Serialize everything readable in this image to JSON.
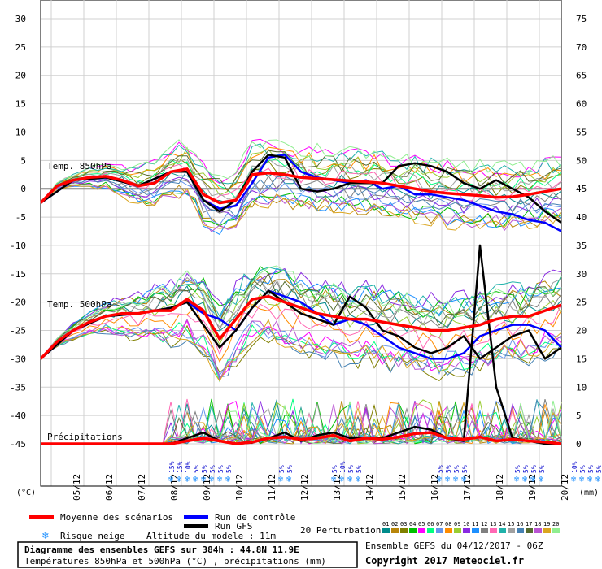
{
  "chart_data": {
    "type": "line",
    "left_axis": {
      "unit_label": "(°C)",
      "ticks": [
        30,
        25,
        20,
        15,
        10,
        5,
        0,
        -5,
        -10,
        -15,
        -20,
        -25,
        -30,
        -35,
        -40,
        -45
      ],
      "range": [
        -45,
        30
      ]
    },
    "right_axis": {
      "unit_label": "(mm)",
      "ticks": [
        75,
        70,
        65,
        60,
        55,
        50,
        45,
        40,
        35,
        30,
        25,
        20,
        15,
        10,
        5,
        0
      ],
      "range": [
        0,
        75
      ]
    },
    "x_ticks": [
      "05/12",
      "06/12",
      "07/12",
      "08/12",
      "09/12",
      "10/12",
      "11/12",
      "12/12",
      "13/12",
      "14/12",
      "15/12",
      "16/12",
      "17/12",
      "18/12",
      "19/12",
      "20/12"
    ],
    "x_range_hours": [
      0,
      384
    ],
    "grid": true,
    "panel_labels": {
      "t850": "Temp. 850hPa",
      "t500": "Temp. 500hPa",
      "precip": "Précipitations"
    },
    "series": [
      {
        "name": "Moyenne des scénarios",
        "color": "#ff0000",
        "panel": "t850",
        "x": [
          0,
          12,
          24,
          36,
          48,
          60,
          72,
          84,
          96,
          108,
          120,
          132,
          144,
          150,
          156,
          168,
          180,
          192,
          204,
          216,
          228,
          240,
          252,
          264,
          276,
          288,
          300,
          312,
          324,
          336,
          348,
          360,
          372,
          384
        ],
        "y": [
          -2.5,
          0.5,
          1.5,
          2,
          2.2,
          1.5,
          0.5,
          1,
          3,
          3.5,
          -1,
          -2.5,
          -2,
          0,
          2.5,
          2.8,
          2.5,
          2,
          1.8,
          1.6,
          1.4,
          1.2,
          1,
          0.5,
          0,
          -0.5,
          -0.8,
          -1,
          -1.2,
          -1.5,
          -1.4,
          -1,
          -0.5,
          0
        ]
      },
      {
        "name": "Moyenne des scénarios",
        "color": "#ff0000",
        "panel": "t500",
        "x": [
          0,
          12,
          24,
          36,
          48,
          60,
          72,
          84,
          96,
          108,
          120,
          132,
          144,
          156,
          168,
          180,
          192,
          204,
          216,
          228,
          240,
          252,
          264,
          276,
          288,
          300,
          312,
          324,
          336,
          348,
          360,
          372,
          384
        ],
        "y": [
          -30,
          -27,
          -25,
          -23.5,
          -22.5,
          -22,
          -22,
          -21.5,
          -21.5,
          -19.5,
          -21.5,
          -26.5,
          -23,
          -19.5,
          -19,
          -20,
          -21,
          -22,
          -22.5,
          -23,
          -23,
          -23.5,
          -24,
          -24.5,
          -25,
          -25,
          -24.5,
          -24,
          -23,
          -22.5,
          -22.5,
          -21.5,
          -20.5
        ]
      },
      {
        "name": "Moyenne des scénarios",
        "color": "#ff0000",
        "panel": "precip",
        "x": [
          0,
          96,
          108,
          120,
          132,
          144,
          156,
          168,
          180,
          192,
          204,
          216,
          228,
          240,
          252,
          264,
          276,
          288,
          300,
          312,
          324,
          336,
          348,
          360,
          372,
          384
        ],
        "y": [
          0,
          0,
          0.5,
          1,
          0.5,
          0,
          0.3,
          1,
          1.2,
          0.8,
          1,
          1.5,
          0.5,
          1,
          0.8,
          1.2,
          1.8,
          2,
          1,
          0.8,
          1.2,
          0.5,
          0.8,
          0.5,
          0.3,
          0
        ]
      },
      {
        "name": "Run de contrôle",
        "color": "#0000ff",
        "panel": "t850",
        "x": [
          0,
          24,
          48,
          72,
          96,
          108,
          120,
          132,
          144,
          156,
          168,
          180,
          192,
          204,
          216,
          228,
          240,
          252,
          264,
          276,
          288,
          300,
          312,
          324,
          336,
          348,
          360,
          372,
          384
        ],
        "y": [
          -2.5,
          1.5,
          2,
          0.5,
          3,
          3,
          -2,
          -3.5,
          -3,
          1,
          5.5,
          6,
          3,
          2,
          1.5,
          1,
          1.5,
          0,
          0.5,
          -1,
          -1,
          -1.5,
          -2,
          -3,
          -4,
          -4.5,
          -5.5,
          -6,
          -7.5
        ]
      },
      {
        "name": "Run de contrôle",
        "color": "#0000ff",
        "panel": "t500",
        "x": [
          0,
          24,
          48,
          72,
          96,
          108,
          120,
          132,
          144,
          156,
          168,
          180,
          192,
          204,
          216,
          228,
          240,
          252,
          264,
          276,
          288,
          300,
          312,
          324,
          336,
          348,
          360,
          372,
          384
        ],
        "y": [
          -30,
          -25,
          -22.5,
          -22,
          -21,
          -20,
          -22,
          -23,
          -25,
          -21,
          -18,
          -19,
          -20,
          -22,
          -24,
          -23,
          -24,
          -26,
          -28,
          -29,
          -30,
          -30,
          -29,
          -26,
          -25,
          -24,
          -24,
          -25,
          -28
        ]
      },
      {
        "name": "Run GFS",
        "color": "#000000",
        "panel": "t850",
        "x": [
          0,
          24,
          48,
          72,
          96,
          108,
          120,
          132,
          144,
          156,
          168,
          180,
          192,
          204,
          216,
          228,
          240,
          252,
          264,
          276,
          288,
          300,
          312,
          324,
          336,
          348,
          360,
          372,
          384
        ],
        "y": [
          -2.5,
          1.5,
          2,
          0.5,
          3,
          3,
          -2,
          -4,
          -2,
          3,
          6,
          5.5,
          0,
          -0.5,
          0,
          1,
          1,
          1,
          4,
          4.5,
          4,
          3,
          1,
          0,
          1.5,
          0,
          -1.5,
          -4,
          -6
        ]
      },
      {
        "name": "Run GFS",
        "color": "#000000",
        "panel": "t500",
        "x": [
          0,
          24,
          48,
          72,
          96,
          108,
          120,
          132,
          144,
          156,
          168,
          180,
          192,
          204,
          216,
          228,
          240,
          252,
          264,
          276,
          288,
          300,
          312,
          324,
          336,
          348,
          360,
          372,
          384
        ],
        "y": [
          -30,
          -25,
          -22.5,
          -22,
          -21,
          -20,
          -24,
          -28,
          -25,
          -21,
          -18,
          -20,
          -22,
          -23,
          -24,
          -19,
          -21,
          -25,
          -26,
          -28,
          -29,
          -28,
          -26,
          -30,
          -28,
          -26,
          -25,
          -30,
          -28
        ]
      },
      {
        "name": "Run GFS",
        "color": "#000000",
        "panel": "precip",
        "x": [
          0,
          96,
          108,
          120,
          132,
          144,
          156,
          168,
          180,
          192,
          204,
          216,
          228,
          240,
          252,
          264,
          276,
          288,
          300,
          312,
          324,
          336,
          348,
          360,
          372,
          384
        ],
        "y": [
          0,
          0,
          1,
          2,
          0.5,
          0,
          0.2,
          1,
          2,
          0.5,
          1.5,
          2,
          1,
          1,
          1,
          2,
          3,
          2.5,
          1,
          0.5,
          35,
          10,
          1,
          0.5,
          0,
          0
        ]
      }
    ],
    "perturbations_label": "20 Perturbations",
    "perturbation_ids": [
      "01",
      "02",
      "03",
      "04",
      "05",
      "06",
      "07",
      "08",
      "09",
      "10",
      "11",
      "12",
      "13",
      "14",
      "15",
      "16",
      "17",
      "18",
      "19",
      "20"
    ],
    "perturbation_colors": [
      "#008b8b",
      "#b8860b",
      "#808000",
      "#00c000",
      "#ff00ff",
      "#00ff7f",
      "#6495ed",
      "#ff8c00",
      "#9acd32",
      "#8a2be2",
      "#1e90ff",
      "#808080",
      "#ff69b4",
      "#20b2aa",
      "#a0a0a0",
      "#4682b4",
      "#556b2f",
      "#ba55d3",
      "#daa520",
      "#90ee90"
    ],
    "snow_markers": [
      {
        "x": 117,
        "labels": [
          "15%",
          "15%",
          "10%",
          "5%",
          "5%",
          "5%",
          "5%",
          "5%"
        ]
      },
      {
        "x": 180,
        "labels": [
          "5%",
          "5%"
        ]
      },
      {
        "x": 225,
        "labels": [
          "5%",
          "10%",
          "5%",
          "5%"
        ]
      },
      {
        "x": 303,
        "labels": [
          "5%",
          "5%",
          "5%",
          "5%"
        ]
      },
      {
        "x": 360,
        "labels": [
          "5%",
          "5%",
          "5%",
          "5%"
        ]
      },
      {
        "x": 402,
        "labels": [
          "10%",
          "5%",
          "5%",
          "5%"
        ]
      }
    ]
  },
  "legend": {
    "mean": "Moyenne des scénarios",
    "control": "Run de contrôle",
    "gfs": "Run GFS",
    "perturbations": "20 Perturbations",
    "snow": "Risque neige",
    "altitude": "Altitude du modele : 11m"
  },
  "footer": {
    "title": "Diagramme des ensembles GEFS sur 384h : 44.8N 11.9E",
    "subtitle": "Températures 850hPa et 500hPa (°C) , précipitations (mm)",
    "run_info": "Ensemble GEFS du 04/12/2017 - 06Z",
    "copyright": "Copyright 2017 Meteociel.fr"
  }
}
